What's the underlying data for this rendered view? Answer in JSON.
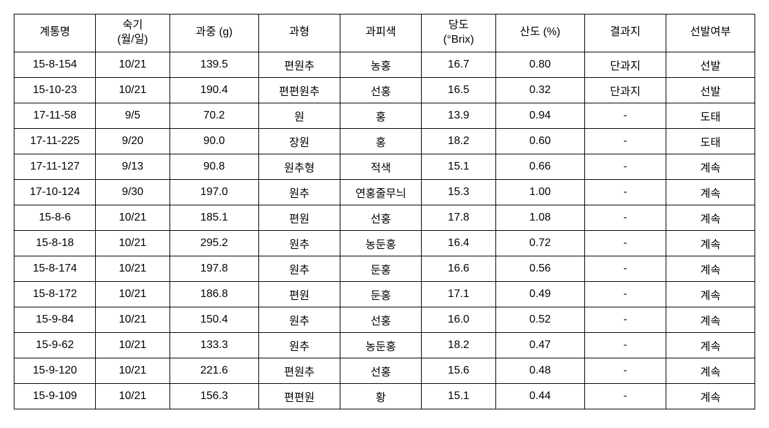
{
  "table": {
    "columns": [
      {
        "key": "name",
        "label": "계통명",
        "classname": "col-name"
      },
      {
        "key": "period",
        "label": "숙기\n(월/일)",
        "classname": "col-period"
      },
      {
        "key": "weight",
        "label": "과중 (g)",
        "classname": "col-weight"
      },
      {
        "key": "shape",
        "label": "과형",
        "classname": "col-shape"
      },
      {
        "key": "skincolor",
        "label": "과피색",
        "classname": "col-skincolor"
      },
      {
        "key": "sugar",
        "label": "당도\n(°Brix)",
        "classname": "col-sugar"
      },
      {
        "key": "acid",
        "label": "산도 (%)",
        "classname": "col-acid"
      },
      {
        "key": "branch",
        "label": "결과지",
        "classname": "col-branch"
      },
      {
        "key": "select",
        "label": "선발여부",
        "classname": "col-select"
      }
    ],
    "rows": [
      [
        "15-8-154",
        "10/21",
        "139.5",
        "편원추",
        "농홍",
        "16.7",
        "0.80",
        "단과지",
        "선발"
      ],
      [
        "15-10-23",
        "10/21",
        "190.4",
        "편편원추",
        "선홍",
        "16.5",
        "0.32",
        "단과지",
        "선발"
      ],
      [
        "17-11-58",
        "9/5",
        "70.2",
        "원",
        "홍",
        "13.9",
        "0.94",
        "-",
        "도태"
      ],
      [
        "17-11-225",
        "9/20",
        "90.0",
        "장원",
        "홍",
        "18.2",
        "0.60",
        "-",
        "도태"
      ],
      [
        "17-11-127",
        "9/13",
        "90.8",
        "원추형",
        "적색",
        "15.1",
        "0.66",
        "-",
        "계속"
      ],
      [
        "17-10-124",
        "9/30",
        "197.0",
        "원추",
        "연홍줄무늬",
        "15.3",
        "1.00",
        "-",
        "계속"
      ],
      [
        "15-8-6",
        "10/21",
        "185.1",
        "편원",
        "선홍",
        "17.8",
        "1.08",
        "-",
        "계속"
      ],
      [
        "15-8-18",
        "10/21",
        "295.2",
        "원추",
        "농둔홍",
        "16.4",
        "0.72",
        "-",
        "계속"
      ],
      [
        "15-8-174",
        "10/21",
        "197.8",
        "원추",
        "둔홍",
        "16.6",
        "0.56",
        "-",
        "계속"
      ],
      [
        "15-8-172",
        "10/21",
        "186.8",
        "편원",
        "둔홍",
        "17.1",
        "0.49",
        "-",
        "계속"
      ],
      [
        "15-9-84",
        "10/21",
        "150.4",
        "원추",
        "선홍",
        "16.0",
        "0.52",
        "-",
        "계속"
      ],
      [
        "15-9-62",
        "10/21",
        "133.3",
        "원추",
        "농둔홍",
        "18.2",
        "0.47",
        "-",
        "계속"
      ],
      [
        "15-9-120",
        "10/21",
        "221.6",
        "편원추",
        "선홍",
        "15.6",
        "0.48",
        "-",
        "계속"
      ],
      [
        "15-9-109",
        "10/21",
        "156.3",
        "편편원",
        "황",
        "15.1",
        "0.44",
        "-",
        "계속"
      ]
    ],
    "styles": {
      "border_color": "#000000",
      "background_color": "#ffffff",
      "text_color": "#000000",
      "font_size_pt": 12,
      "font_family": "Malgun Gothic",
      "cell_padding": "6px 4px",
      "text_align": "center"
    }
  }
}
